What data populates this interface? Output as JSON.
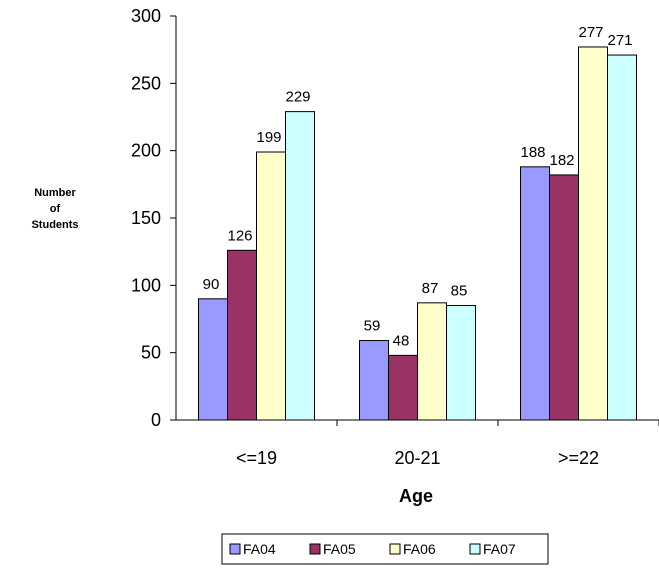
{
  "chart_data": {
    "type": "bar",
    "categories": [
      "<=19",
      "20-21",
      ">=22"
    ],
    "series": [
      {
        "name": "FA04",
        "values": [
          90,
          59,
          188
        ],
        "color": "#9999FF"
      },
      {
        "name": "FA05",
        "values": [
          126,
          48,
          182
        ],
        "color": "#993366"
      },
      {
        "name": "FA06",
        "values": [
          199,
          87,
          277
        ],
        "color": "#FFFFCC"
      },
      {
        "name": "FA07",
        "values": [
          229,
          85,
          271
        ],
        "color": "#CCFFFF"
      }
    ],
    "xlabel": "Age",
    "ylabel": [
      "Number",
      "of",
      "Students"
    ],
    "ylim": [
      0,
      300
    ],
    "yticks": [
      0,
      50,
      100,
      150,
      200,
      250,
      300
    ],
    "grid": false,
    "legend": "bottom"
  }
}
